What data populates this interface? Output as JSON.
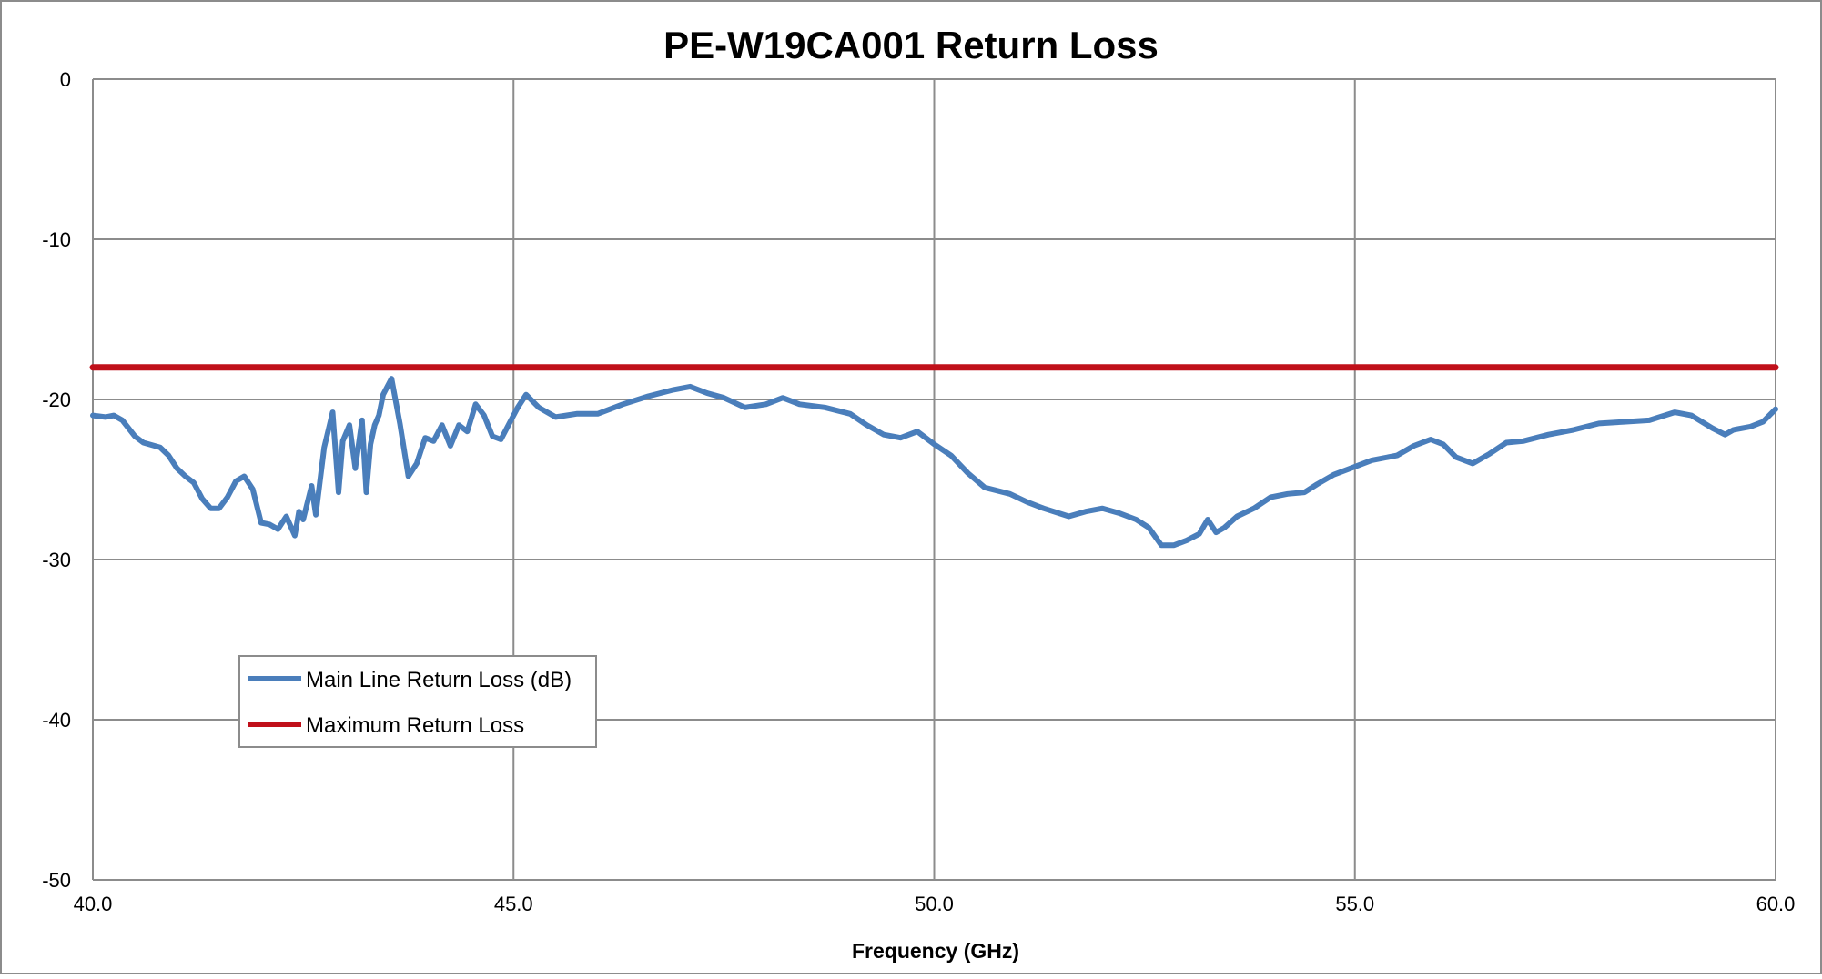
{
  "chart_data": {
    "type": "line",
    "title": "PE-W19CA001 Return Loss",
    "xlabel": "Frequency (GHz)",
    "ylabel": "",
    "xlim": [
      40,
      60
    ],
    "ylim": [
      -50,
      0
    ],
    "x_ticks": [
      "40.0",
      "45.0",
      "50.0",
      "55.0",
      "60.0"
    ],
    "y_ticks": [
      "0",
      "-10",
      "-20",
      "-30",
      "-40",
      "-50"
    ],
    "grid": true,
    "legend_position": "lower-left",
    "series": [
      {
        "name": "Main Line Return Loss (dB)",
        "color": "#4a7ebb",
        "points": [
          [
            40.0,
            -21.0
          ],
          [
            40.15,
            -21.1
          ],
          [
            40.25,
            -21.0
          ],
          [
            40.35,
            -21.3
          ],
          [
            40.5,
            -22.3
          ],
          [
            40.6,
            -22.7
          ],
          [
            40.8,
            -23.0
          ],
          [
            40.9,
            -23.5
          ],
          [
            41.0,
            -24.3
          ],
          [
            41.1,
            -24.8
          ],
          [
            41.2,
            -25.2
          ],
          [
            41.3,
            -26.2
          ],
          [
            41.4,
            -26.8
          ],
          [
            41.5,
            -26.8
          ],
          [
            41.6,
            -26.1
          ],
          [
            41.7,
            -25.1
          ],
          [
            41.8,
            -24.8
          ],
          [
            41.9,
            -25.6
          ],
          [
            42.0,
            -27.7
          ],
          [
            42.1,
            -27.8
          ],
          [
            42.2,
            -28.1
          ],
          [
            42.3,
            -27.3
          ],
          [
            42.4,
            -28.5
          ],
          [
            42.45,
            -27.0
          ],
          [
            42.5,
            -27.5
          ],
          [
            42.6,
            -25.4
          ],
          [
            42.65,
            -27.2
          ],
          [
            42.75,
            -23.0
          ],
          [
            42.85,
            -20.8
          ],
          [
            42.92,
            -25.8
          ],
          [
            42.97,
            -22.6
          ],
          [
            43.05,
            -21.6
          ],
          [
            43.12,
            -24.3
          ],
          [
            43.2,
            -21.3
          ],
          [
            43.25,
            -25.8
          ],
          [
            43.3,
            -22.8
          ],
          [
            43.35,
            -21.6
          ],
          [
            43.4,
            -21.0
          ],
          [
            43.45,
            -19.7
          ],
          [
            43.55,
            -18.7
          ],
          [
            43.65,
            -21.5
          ],
          [
            43.75,
            -24.8
          ],
          [
            43.85,
            -24.0
          ],
          [
            43.95,
            -22.4
          ],
          [
            44.05,
            -22.6
          ],
          [
            44.15,
            -21.6
          ],
          [
            44.25,
            -22.9
          ],
          [
            44.35,
            -21.6
          ],
          [
            44.45,
            -22.0
          ],
          [
            44.55,
            -20.3
          ],
          [
            44.65,
            -21.0
          ],
          [
            44.75,
            -22.3
          ],
          [
            44.85,
            -22.5
          ],
          [
            44.95,
            -21.5
          ],
          [
            45.05,
            -20.5
          ],
          [
            45.15,
            -19.7
          ],
          [
            45.3,
            -20.5
          ],
          [
            45.5,
            -21.1
          ],
          [
            45.75,
            -20.9
          ],
          [
            46.0,
            -20.9
          ],
          [
            46.3,
            -20.3
          ],
          [
            46.6,
            -19.8
          ],
          [
            46.9,
            -19.4
          ],
          [
            47.1,
            -19.2
          ],
          [
            47.3,
            -19.6
          ],
          [
            47.5,
            -19.9
          ],
          [
            47.75,
            -20.5
          ],
          [
            48.0,
            -20.3
          ],
          [
            48.2,
            -19.9
          ],
          [
            48.4,
            -20.3
          ],
          [
            48.7,
            -20.5
          ],
          [
            49.0,
            -20.9
          ],
          [
            49.2,
            -21.6
          ],
          [
            49.4,
            -22.2
          ],
          [
            49.6,
            -22.4
          ],
          [
            49.8,
            -22.0
          ],
          [
            50.0,
            -22.8
          ],
          [
            50.2,
            -23.5
          ],
          [
            50.4,
            -24.6
          ],
          [
            50.6,
            -25.5
          ],
          [
            50.9,
            -25.9
          ],
          [
            51.1,
            -26.4
          ],
          [
            51.3,
            -26.8
          ],
          [
            51.6,
            -27.3
          ],
          [
            51.8,
            -27.0
          ],
          [
            52.0,
            -26.8
          ],
          [
            52.2,
            -27.1
          ],
          [
            52.4,
            -27.5
          ],
          [
            52.55,
            -28.0
          ],
          [
            52.7,
            -29.1
          ],
          [
            52.85,
            -29.1
          ],
          [
            53.0,
            -28.8
          ],
          [
            53.15,
            -28.4
          ],
          [
            53.25,
            -27.5
          ],
          [
            53.35,
            -28.3
          ],
          [
            53.45,
            -28.0
          ],
          [
            53.6,
            -27.3
          ],
          [
            53.8,
            -26.8
          ],
          [
            54.0,
            -26.1
          ],
          [
            54.2,
            -25.9
          ],
          [
            54.4,
            -25.8
          ],
          [
            54.55,
            -25.3
          ],
          [
            54.75,
            -24.7
          ],
          [
            55.0,
            -24.2
          ],
          [
            55.2,
            -23.8
          ],
          [
            55.5,
            -23.5
          ],
          [
            55.7,
            -22.9
          ],
          [
            55.9,
            -22.5
          ],
          [
            56.05,
            -22.8
          ],
          [
            56.2,
            -23.6
          ],
          [
            56.4,
            -24.0
          ],
          [
            56.6,
            -23.4
          ],
          [
            56.8,
            -22.7
          ],
          [
            57.0,
            -22.6
          ],
          [
            57.3,
            -22.2
          ],
          [
            57.6,
            -21.9
          ],
          [
            57.9,
            -21.5
          ],
          [
            58.2,
            -21.4
          ],
          [
            58.5,
            -21.3
          ],
          [
            58.8,
            -20.8
          ],
          [
            59.0,
            -21.0
          ],
          [
            59.25,
            -21.8
          ],
          [
            59.4,
            -22.2
          ],
          [
            59.5,
            -21.9
          ],
          [
            59.7,
            -21.7
          ],
          [
            59.85,
            -21.4
          ],
          [
            60.0,
            -20.6
          ]
        ]
      },
      {
        "name": "Maximum Return Loss",
        "color": "#c0101a",
        "points": [
          [
            40.0,
            -18.0
          ],
          [
            60.0,
            -18.0
          ]
        ]
      }
    ]
  }
}
